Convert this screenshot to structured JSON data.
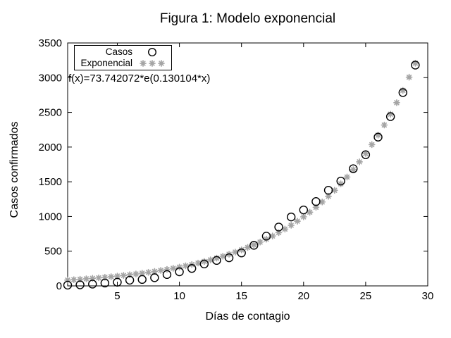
{
  "window": {
    "background": "#ffffff"
  },
  "chart_data": {
    "type": "scatter",
    "title": "Figura 1: Modelo exponencial",
    "xlabel": "Días de contagio",
    "ylabel": "Casos confirmados",
    "xlim": [
      1,
      30
    ],
    "ylim": [
      0,
      3500
    ],
    "xticks": [
      5,
      10,
      15,
      20,
      25,
      30
    ],
    "yticks": [
      0,
      500,
      1000,
      1500,
      2000,
      2500,
      3000,
      3500
    ],
    "grid": false,
    "tick_style": "inward-mirrored",
    "legend_position": "top-left-inside",
    "fit_label": "f(x)=73.742072*e(0.130104*x)",
    "series": [
      {
        "name": "Casos",
        "marker": "open-circle",
        "color": "#000000",
        "x": [
          1,
          2,
          3,
          4,
          5,
          6,
          7,
          8,
          9,
          10,
          11,
          12,
          13,
          14,
          15,
          16,
          17,
          18,
          19,
          20,
          21,
          22,
          23,
          24,
          25,
          26,
          27,
          28,
          29
        ],
        "values": [
          11,
          15,
          26,
          41,
          53,
          82,
          93,
          118,
          164,
          203,
          251,
          316,
          367,
          405,
          475,
          585,
          717,
          848,
          993,
          1094,
          1215,
          1378,
          1510,
          1688,
          1890,
          2143,
          2439,
          2785,
          3181
        ]
      },
      {
        "name": "Exponencial",
        "marker": "asterisk",
        "color": "#a5a5a5",
        "model": {
          "a": 73.742072,
          "b": 0.130104,
          "x_start": 1,
          "x_end": 29,
          "x_step": 0.5
        }
      }
    ]
  }
}
